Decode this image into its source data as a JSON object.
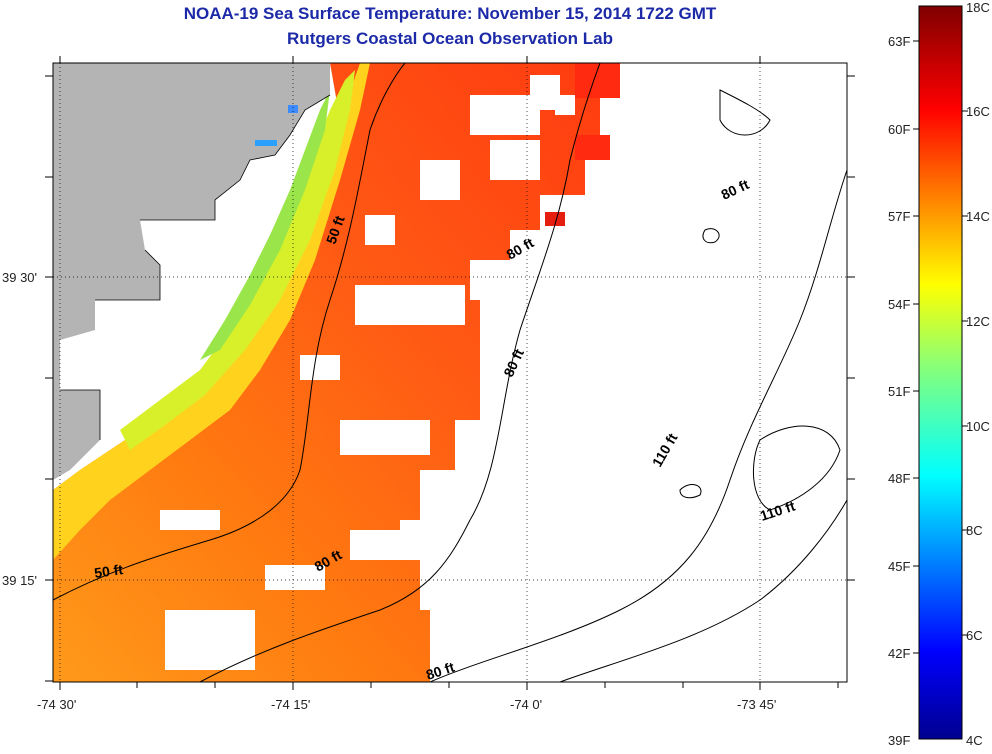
{
  "header": {
    "title": "NOAA-19 Sea Surface Temperature:  November 15, 2014 1722 GMT",
    "subtitle": "Rutgers Coastal Ocean Observation Lab"
  },
  "map": {
    "lon_labels": [
      "-74 30'",
      "-74 15'",
      "-74 0'",
      "-73 45'"
    ],
    "lat_labels": [
      "39 30'",
      "39 15'"
    ],
    "contour_labels": [
      "50 ft",
      "50 ft",
      "80 ft",
      "80 ft",
      "80 ft",
      "80 ft",
      "80 ft",
      "110 ft",
      "110 ft"
    ],
    "land_color": "#b4b4b4",
    "no_data_color": "#ffffff"
  },
  "colorbar": {
    "celsius_labels": [
      "18C",
      "16C",
      "14C",
      "12C",
      "10C",
      "8C",
      "6C",
      "4C"
    ],
    "fahrenheit_labels": [
      "63F",
      "60F",
      "57F",
      "54F",
      "51F",
      "48F",
      "45F",
      "42F",
      "39F"
    ],
    "colormap": "jet"
  }
}
